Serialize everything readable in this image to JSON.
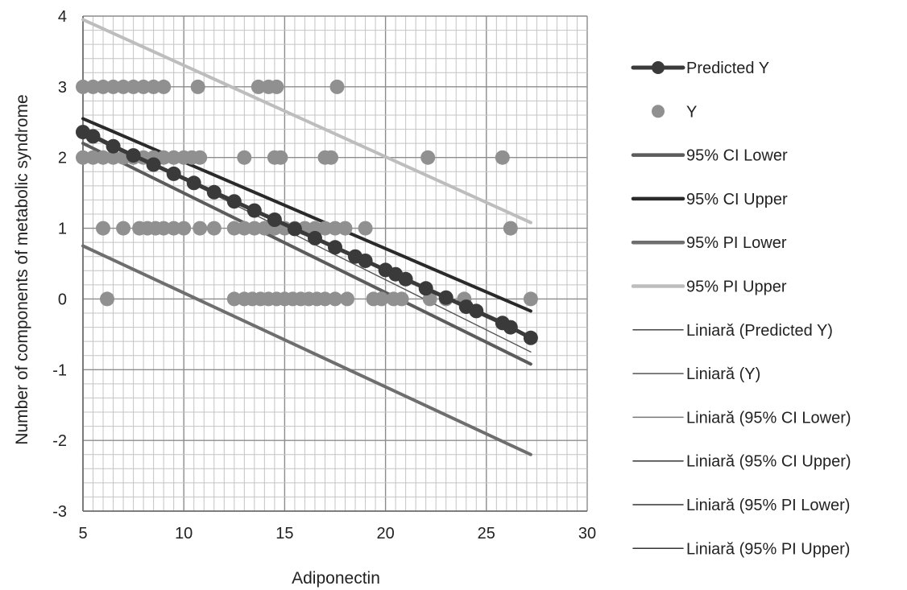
{
  "chart_data": {
    "type": "scatter",
    "xlabel": "Adiponectin",
    "ylabel": "Number of components of metabolic syndrome",
    "xlim": [
      5,
      30
    ],
    "ylim": [
      -3,
      4
    ],
    "x_ticks": [
      "5",
      "10",
      "15",
      "20",
      "25",
      "30"
    ],
    "y_ticks": [
      "4",
      "3",
      "2",
      "1",
      "0",
      "-1",
      "-2",
      "-3"
    ],
    "grid": true,
    "legend_position": "right",
    "series": [
      {
        "name": "Predicted Y",
        "kind": "line-markers",
        "color": "#3a3a3a",
        "points": [
          [
            5.0,
            2.36
          ],
          [
            5.5,
            2.3
          ],
          [
            6.5,
            2.16
          ],
          [
            7.5,
            2.03
          ],
          [
            8.5,
            1.9
          ],
          [
            9.5,
            1.77
          ],
          [
            10.5,
            1.64
          ],
          [
            11.5,
            1.51
          ],
          [
            12.5,
            1.38
          ],
          [
            13.5,
            1.25
          ],
          [
            14.5,
            1.12
          ],
          [
            15.5,
            0.99
          ],
          [
            16.5,
            0.86
          ],
          [
            17.5,
            0.73
          ],
          [
            18.5,
            0.6
          ],
          [
            19.0,
            0.54
          ],
          [
            20.0,
            0.41
          ],
          [
            20.5,
            0.35
          ],
          [
            21.0,
            0.28
          ],
          [
            22.0,
            0.15
          ],
          [
            23.0,
            0.02
          ],
          [
            24.0,
            -0.11
          ],
          [
            24.5,
            -0.17
          ],
          [
            25.8,
            -0.34
          ],
          [
            26.2,
            -0.4
          ],
          [
            27.2,
            -0.55
          ]
        ]
      },
      {
        "name": "Y",
        "kind": "markers",
        "color": "#909090",
        "points": [
          [
            5.0,
            3
          ],
          [
            5.5,
            3
          ],
          [
            6.0,
            3
          ],
          [
            6.5,
            3
          ],
          [
            7.0,
            3
          ],
          [
            7.5,
            3
          ],
          [
            8.0,
            3
          ],
          [
            8.5,
            3
          ],
          [
            9.0,
            3
          ],
          [
            10.7,
            3
          ],
          [
            13.7,
            3
          ],
          [
            14.2,
            3
          ],
          [
            14.6,
            3
          ],
          [
            17.6,
            3
          ],
          [
            5.0,
            2
          ],
          [
            5.5,
            2
          ],
          [
            6.0,
            2
          ],
          [
            6.5,
            2
          ],
          [
            7.0,
            2
          ],
          [
            7.5,
            2
          ],
          [
            8.0,
            2
          ],
          [
            8.5,
            2
          ],
          [
            9.0,
            2
          ],
          [
            9.5,
            2
          ],
          [
            10.0,
            2
          ],
          [
            10.4,
            2
          ],
          [
            10.8,
            2
          ],
          [
            13.0,
            2
          ],
          [
            14.5,
            2
          ],
          [
            14.8,
            2
          ],
          [
            17.0,
            2
          ],
          [
            17.3,
            2
          ],
          [
            22.1,
            2
          ],
          [
            25.8,
            2
          ],
          [
            6.0,
            1
          ],
          [
            7.0,
            1
          ],
          [
            7.8,
            1
          ],
          [
            8.2,
            1
          ],
          [
            8.6,
            1
          ],
          [
            9.0,
            1
          ],
          [
            9.5,
            1
          ],
          [
            10.0,
            1
          ],
          [
            10.8,
            1
          ],
          [
            11.5,
            1
          ],
          [
            12.5,
            1
          ],
          [
            13.0,
            1
          ],
          [
            13.5,
            1
          ],
          [
            14.0,
            1
          ],
          [
            14.5,
            1
          ],
          [
            15.0,
            1
          ],
          [
            15.5,
            1
          ],
          [
            16.0,
            1
          ],
          [
            16.5,
            1
          ],
          [
            17.0,
            1
          ],
          [
            17.5,
            1
          ],
          [
            18.0,
            1
          ],
          [
            19.0,
            1
          ],
          [
            26.2,
            1
          ],
          [
            6.2,
            0
          ],
          [
            12.5,
            0
          ],
          [
            13.0,
            0
          ],
          [
            13.4,
            0
          ],
          [
            13.8,
            0
          ],
          [
            14.2,
            0
          ],
          [
            14.6,
            0
          ],
          [
            15.0,
            0
          ],
          [
            15.4,
            0
          ],
          [
            15.8,
            0
          ],
          [
            16.2,
            0
          ],
          [
            16.6,
            0
          ],
          [
            17.0,
            0
          ],
          [
            17.5,
            0
          ],
          [
            18.1,
            0
          ],
          [
            19.4,
            0
          ],
          [
            19.8,
            0
          ],
          [
            20.4,
            0
          ],
          [
            20.8,
            0
          ],
          [
            22.2,
            0
          ],
          [
            23.0,
            0
          ],
          [
            23.9,
            0
          ],
          [
            27.2,
            0
          ]
        ]
      },
      {
        "name": "95% CI Lower",
        "kind": "line",
        "color": "#5c5c5c",
        "points": [
          [
            5.0,
            2.2
          ],
          [
            27.2,
            -0.92
          ]
        ]
      },
      {
        "name": "95% CI Upper",
        "kind": "line",
        "color": "#2a2a2a",
        "points": [
          [
            5.0,
            2.55
          ],
          [
            27.2,
            -0.17
          ]
        ]
      },
      {
        "name": "95% PI Lower",
        "kind": "line",
        "color": "#6e6e6e",
        "points": [
          [
            5.0,
            0.75
          ],
          [
            27.2,
            -2.2
          ]
        ]
      },
      {
        "name": "95% PI Upper",
        "kind": "line",
        "color": "#bdbdbd",
        "points": [
          [
            5.0,
            3.95
          ],
          [
            27.2,
            1.08
          ]
        ]
      },
      {
        "name": "Liniară (Predicted Y)",
        "kind": "trendline",
        "color": "#444444",
        "points": [
          [
            5.0,
            2.36
          ],
          [
            27.2,
            -0.55
          ]
        ]
      },
      {
        "name": "Liniară (Y)",
        "kind": "trendline",
        "color": "#555555",
        "points": [
          [
            5.0,
            2.4
          ],
          [
            27.2,
            -0.75
          ]
        ]
      },
      {
        "name": "Liniară (95% CI Lower)",
        "kind": "trendline",
        "color": "#777777",
        "points": [
          [
            5.0,
            2.2
          ],
          [
            27.2,
            -0.92
          ]
        ]
      },
      {
        "name": "Liniară (95% CI Upper)",
        "kind": "trendline",
        "color": "#333333",
        "points": [
          [
            5.0,
            2.55
          ],
          [
            27.2,
            -0.17
          ]
        ]
      },
      {
        "name": "Liniară (95% PI Lower)",
        "kind": "trendline",
        "color": "#333333",
        "points": [
          [
            5.0,
            0.75
          ],
          [
            27.2,
            -2.2
          ]
        ]
      },
      {
        "name": "Liniară (95% PI Upper)",
        "kind": "trendline",
        "color": "#333333",
        "points": [
          [
            5.0,
            3.95
          ],
          [
            27.2,
            1.08
          ]
        ]
      }
    ]
  }
}
